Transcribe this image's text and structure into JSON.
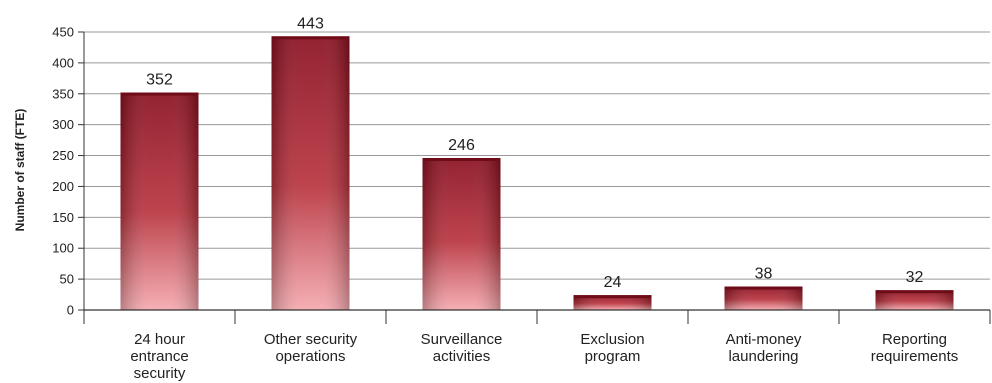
{
  "chart_data": {
    "type": "bar",
    "title": "",
    "xlabel": "",
    "ylabel": "Number of staff (FTE)",
    "ylim": [
      0,
      450
    ],
    "yticks": [
      0,
      50,
      100,
      150,
      200,
      250,
      300,
      350,
      400,
      450
    ],
    "grid": true,
    "legend": "none",
    "bar_color": "#9e1d2e",
    "bar_highlight": "#f2a7ad",
    "categories": [
      [
        "24 hour",
        "entrance",
        "security"
      ],
      [
        "Other security",
        "operations"
      ],
      [
        "Surveillance",
        "activities"
      ],
      [
        "Exclusion",
        "program"
      ],
      [
        "Anti-money",
        "laundering"
      ],
      [
        "Reporting",
        "requirements"
      ]
    ],
    "values": [
      352,
      443,
      246,
      24,
      38,
      32
    ],
    "data_labels": [
      "352",
      "443",
      "246",
      "24",
      "38",
      "32"
    ]
  }
}
